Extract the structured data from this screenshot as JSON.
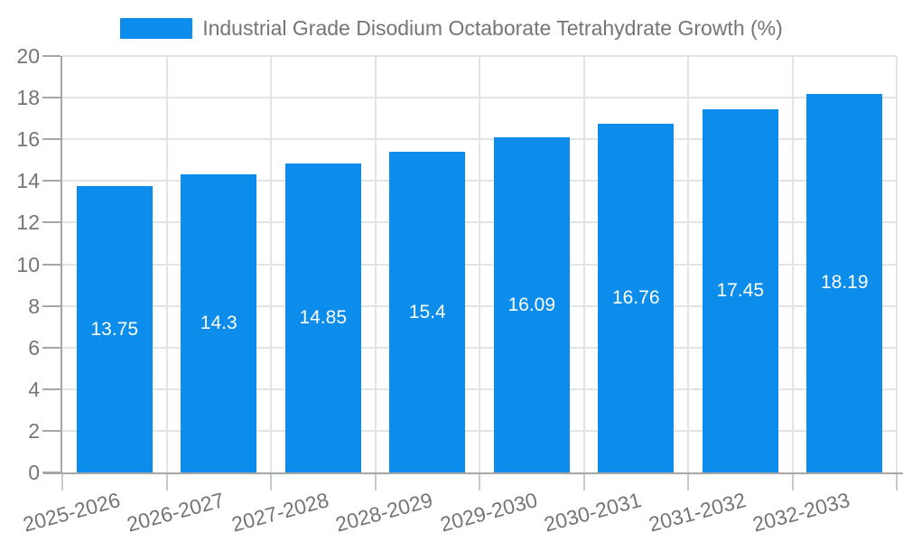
{
  "chart_data": {
    "type": "bar",
    "title": "Industrial Grade Disodium Octaborate Tetrahydrate Growth (%)",
    "legend_position": "top",
    "categories": [
      "2025-2026",
      "2026-2027",
      "2027-2028",
      "2028-2029",
      "2029-2030",
      "2030-2031",
      "2031-2032",
      "2032-2033"
    ],
    "values": [
      13.75,
      14.3,
      14.85,
      15.4,
      16.09,
      16.76,
      17.45,
      18.19
    ],
    "value_labels": [
      "13.75",
      "14.3",
      "14.85",
      "15.4",
      "16.09",
      "16.76",
      "17.45",
      "18.19"
    ],
    "xlabel": "",
    "ylabel": "",
    "ylim": [
      0,
      20
    ],
    "yticks": [
      0,
      2,
      4,
      6,
      8,
      10,
      12,
      14,
      16,
      18,
      20
    ],
    "grid": true,
    "x_label_rotation_deg": -15,
    "style": {
      "bar_color": "#0C8CEB",
      "bar_label_color": "#FFFFFF",
      "axis_text_color": "#757575",
      "grid_color": "#E4E4E4",
      "axis_line_color": "#A6A6A6",
      "xtick_color": "#C9C9C9",
      "background": "#FFFFFF"
    }
  }
}
